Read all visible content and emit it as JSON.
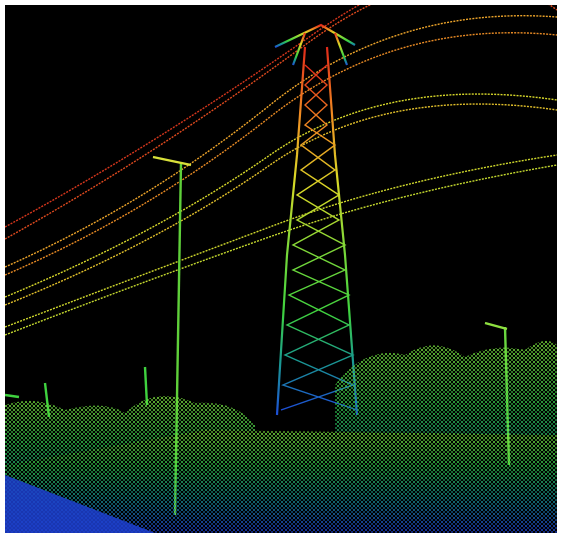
{
  "scene": {
    "subject": "lidar-point-cloud",
    "palette": {
      "background": "#000000",
      "frame": "#ffffff",
      "high": "#e02a1a",
      "upper": "#f08a22",
      "middle": "#d9d927",
      "lower": "#3fd23f",
      "ground": "#1a9c8e",
      "deep": "#1d4fd8"
    }
  }
}
